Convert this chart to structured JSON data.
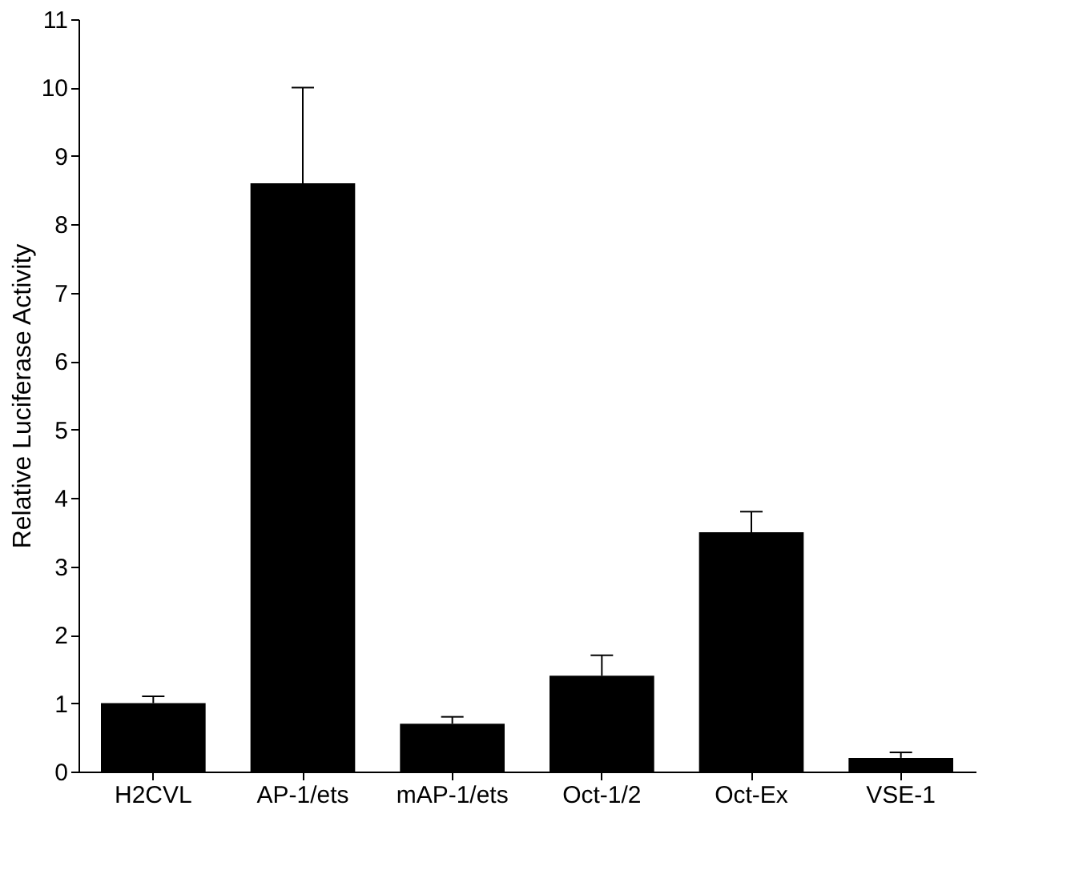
{
  "chart_data": {
    "type": "bar",
    "ylabel": "Relative Luciferase Activity",
    "categories": [
      "H2CVL",
      "AP-1/ets",
      "mAP-1/ets",
      "Oct-1/2",
      "Oct-Ex",
      "VSE-1"
    ],
    "values": [
      1.0,
      8.6,
      0.7,
      1.4,
      3.5,
      0.2
    ],
    "errors": [
      [
        1.0,
        1.1
      ],
      [
        8.6,
        10.0
      ],
      [
        0.7,
        0.8
      ],
      [
        1.4,
        1.7
      ],
      [
        3.5,
        3.8
      ],
      [
        0.2,
        0.28
      ]
    ],
    "color": "#000000",
    "ylim": [
      0,
      11
    ],
    "yticks": [
      0,
      1,
      2,
      3,
      4,
      5,
      6,
      7,
      8,
      9,
      10,
      11
    ],
    "grid": false
  }
}
